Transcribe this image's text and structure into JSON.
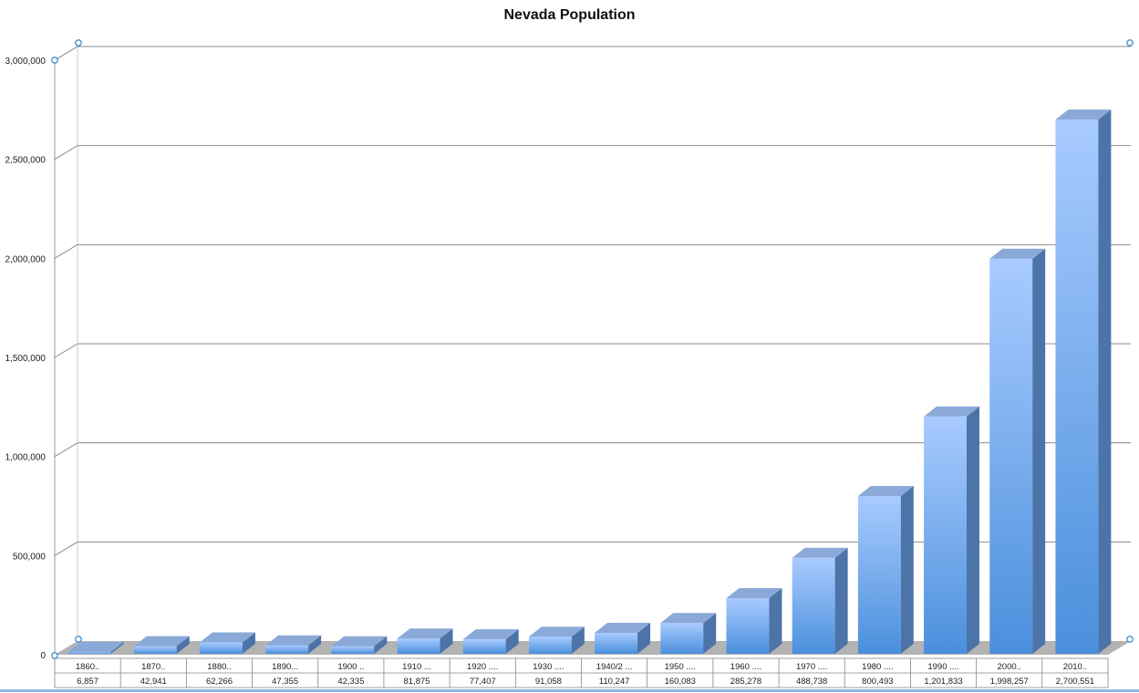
{
  "colors": {
    "bar_front_top": "#a9cbff",
    "bar_front_bottom": "#4a8fdc",
    "bar_side": "#4c74a8",
    "bar_top": "#8aa9d8",
    "floor": "#b3b3b3",
    "gridline": "#8c8c8c",
    "handle": "#3c8fd0"
  },
  "chart_data": {
    "type": "bar",
    "title": "Nevada Population",
    "xlabel": "",
    "ylabel": "",
    "ylim": [
      0,
      3000000
    ],
    "y_ticks": [
      "0",
      "500,000",
      "1,000,000",
      "1,500,000",
      "2,000,000",
      "2,500,000",
      "3,000,000"
    ],
    "y_tick_values": [
      0,
      500000,
      1000000,
      1500000,
      2000000,
      2500000,
      3000000
    ],
    "categories": [
      "1860..",
      "1870..",
      "1880..",
      "1890...",
      "1900 ..",
      "1910 ...",
      "1920 ....",
      "1930 ....",
      "1940/2 ...",
      "1950 ....",
      "1960 ....",
      "1970 ....",
      "1980 ....",
      "1990 ....",
      "2000..",
      "2010.."
    ],
    "value_labels": [
      "6,857",
      "42,941",
      "62,266",
      "47,355",
      "42,335",
      "81,875",
      "77,407",
      "91,058",
      "110,247",
      "160,083",
      "285,278",
      "488,738",
      "800,493",
      "1,201,833",
      "1,998,257",
      "2,700,551"
    ],
    "values": [
      6857,
      42941,
      62266,
      47355,
      42335,
      81875,
      77407,
      91058,
      110247,
      160083,
      285278,
      488738,
      800493,
      1201833,
      1998257,
      2700551
    ],
    "grid": true,
    "legend": "none",
    "data_table": true
  }
}
